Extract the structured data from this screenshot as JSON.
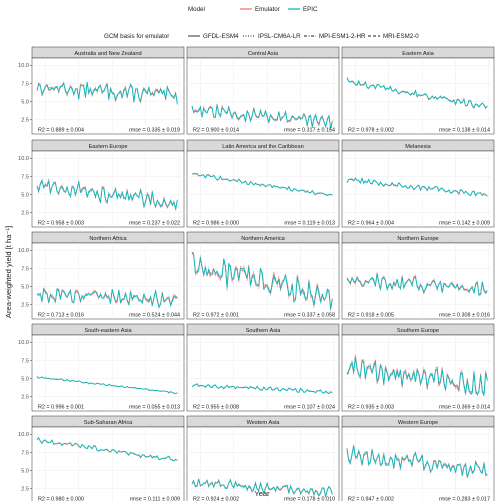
{
  "legend": {
    "model_title": "Model",
    "models": [
      {
        "name": "Emulator",
        "color": "#F8766D"
      },
      {
        "name": "EPIC",
        "color": "#00BFC4"
      }
    ],
    "gcm_title": "GCM basis for emulator",
    "gcms": [
      {
        "name": "GFDL-ESM4",
        "dash": "solid"
      },
      {
        "name": "IPSL-CM6A-LR",
        "dash": "dotted"
      },
      {
        "name": "MPI-ESM1-2-HR",
        "dash": "dotdash"
      },
      {
        "name": "MRI-ESM2-0",
        "dash": "dashed"
      }
    ]
  },
  "chart_data": {
    "type": "line",
    "facet_layout": "5 rows x 3 columns",
    "xlabel": "Year",
    "ylabel": "Area-weighted yield [t ha⁻¹]",
    "xlim": [
      2012,
      2103
    ],
    "ylim": [
      0.5,
      11
    ],
    "xticks": [
      "2020",
      "2040",
      "2060",
      "2080",
      "2100"
    ],
    "yticks": [
      "2.5",
      "5.0",
      "7.5",
      "10.0"
    ],
    "grid": true,
    "legend_position": "top",
    "panels": [
      {
        "title": "Australia and New Zealand",
        "r2": "R2 = 0.889 ± 0.004",
        "rmse": "rmse = 0.335 ± 0.019",
        "start": 7.0,
        "end": 5.8,
        "amp": 1.0
      },
      {
        "title": "Central Asia",
        "r2": "R2 = 0.900 ± 0.014",
        "rmse": "rmse = 0.317 ± 0.154",
        "start": 3.9,
        "end": 2.0,
        "amp": 0.8
      },
      {
        "title": "Eastern Asia",
        "r2": "R2 = 0.978 ± 0.002",
        "rmse": "rmse = 0.138 ± 0.014",
        "start": 7.8,
        "end": 4.2,
        "amp": 0.4
      },
      {
        "title": "Eastern Europe",
        "r2": "R2 = 0.958 ± 0.003",
        "rmse": "rmse = 0.237 ± 0.022",
        "start": 6.3,
        "end": 3.8,
        "amp": 1.0
      },
      {
        "title": "Latin America and the Caribbean",
        "r2": "R2 = 0.986 ± 0.000",
        "rmse": "rmse = 0.119 ± 0.013",
        "start": 7.8,
        "end": 4.9,
        "amp": 0.25
      },
      {
        "title": "Melanesia",
        "r2": "R2 = 0.964 ± 0.004",
        "rmse": "rmse = 0.142 ± 0.009",
        "start": 7.0,
        "end": 5.0,
        "amp": 0.35
      },
      {
        "title": "Northern Africa",
        "r2": "R2 = 0.713 ± 0.016",
        "rmse": "rmse = 0.524 ± 0.044",
        "start": 4.0,
        "end": 3.2,
        "amp": 1.0
      },
      {
        "title": "Northern America",
        "r2": "R2 = 0.972 ± 0.001",
        "rmse": "rmse = 0.337 ± 0.058",
        "start": 8.0,
        "end": 3.5,
        "amp": 1.7
      },
      {
        "title": "Northern Europe",
        "r2": "R2 = 0.918 ± 0.005",
        "rmse": "rmse = 0.308 ± 0.016",
        "start": 6.0,
        "end": 4.5,
        "amp": 0.9
      },
      {
        "title": "South-eastern Asia",
        "r2": "R2 = 0.996 ± 0.001",
        "rmse": "rmse = 0.055 ± 0.013",
        "start": 5.2,
        "end": 3.0,
        "amp": 0.12
      },
      {
        "title": "Southern Asia",
        "r2": "R2 = 0.955 ± 0.008",
        "rmse": "rmse = 0.107 ± 0.024",
        "start": 4.1,
        "end": 3.1,
        "amp": 0.25
      },
      {
        "title": "Southern Europe",
        "r2": "R2 = 0.935 ± 0.003",
        "rmse": "rmse = 0.369 ± 0.014",
        "start": 6.5,
        "end": 3.8,
        "amp": 1.5
      },
      {
        "title": "Sub-Saharan Africa",
        "r2": "R2 = 0.980 ± 0.000",
        "rmse": "rmse = 0.111 ± 0.009",
        "start": 9.2,
        "end": 6.4,
        "amp": 0.3
      },
      {
        "title": "Western Asia",
        "r2": "R2 = 0.924 ± 0.002",
        "rmse": "rmse = 0.178 ± 0.010",
        "start": 3.3,
        "end": 2.0,
        "amp": 0.6
      },
      {
        "title": "Western Europe",
        "r2": "R2 = 0.947 ± 0.002",
        "rmse": "rmse = 0.283 ± 0.017",
        "start": 7.2,
        "end": 5.0,
        "amp": 1.1
      }
    ]
  }
}
